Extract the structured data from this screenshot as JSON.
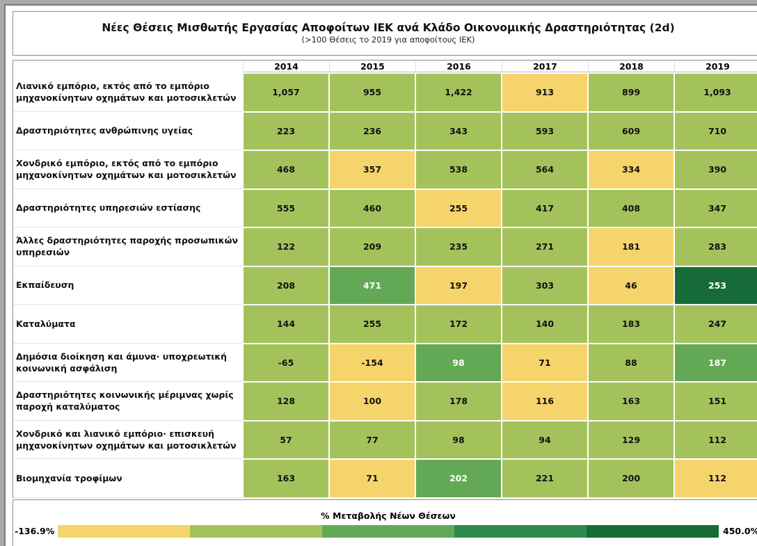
{
  "header": {
    "title": "Νέες Θέσεις Μισθωτής Εργασίας  Αποφοίτων ΙΕΚ ανά Κλάδο Οικονομικής Δραστηριότητας (2d)",
    "subtitle": "(>100 Θέσεις το 2019 για αποφοίτους ΙΕΚ)"
  },
  "legend": {
    "title": "% Μεταβολής Νέων Θέσεων",
    "min": "-136.9%",
    "max": "450.0%",
    "colors": [
      "#f6d46c",
      "#a4c25c",
      "#63a955",
      "#2f8a4d",
      "#166b38"
    ]
  },
  "table": {
    "columns": [
      "2014",
      "2015",
      "2016",
      "2017",
      "2018",
      "2019"
    ],
    "rows": [
      {
        "label": "Λιανικό εμπόριο, εκτός από το εμπόριο μηχανοκίνητων οχημάτων και μοτοσικλετών",
        "cells": [
          {
            "value": "1,057",
            "color": "#a4c25c"
          },
          {
            "value": "955",
            "color": "#a4c25c"
          },
          {
            "value": "1,422",
            "color": "#a4c25c"
          },
          {
            "value": "913",
            "color": "#f6d46c"
          },
          {
            "value": "899",
            "color": "#a4c25c"
          },
          {
            "value": "1,093",
            "color": "#a4c25c"
          }
        ]
      },
      {
        "label": "Δραστηριότητες ανθρώπινης υγείας",
        "cells": [
          {
            "value": "223",
            "color": "#a4c25c"
          },
          {
            "value": "236",
            "color": "#a4c25c"
          },
          {
            "value": "343",
            "color": "#a4c25c"
          },
          {
            "value": "593",
            "color": "#a4c25c"
          },
          {
            "value": "609",
            "color": "#a4c25c"
          },
          {
            "value": "710",
            "color": "#a4c25c"
          }
        ]
      },
      {
        "label": "Χονδρικό εμπόριο, εκτός από το εμπόριο μηχανοκίνητων οχημάτων και μοτοσικλετών",
        "cells": [
          {
            "value": "468",
            "color": "#a4c25c"
          },
          {
            "value": "357",
            "color": "#f6d46c"
          },
          {
            "value": "538",
            "color": "#a4c25c"
          },
          {
            "value": "564",
            "color": "#a4c25c"
          },
          {
            "value": "334",
            "color": "#f6d46c"
          },
          {
            "value": "390",
            "color": "#a4c25c"
          }
        ]
      },
      {
        "label": "Δραστηριότητες υπηρεσιών εστίασης",
        "cells": [
          {
            "value": "555",
            "color": "#a4c25c"
          },
          {
            "value": "460",
            "color": "#a4c25c"
          },
          {
            "value": "255",
            "color": "#f6d46c"
          },
          {
            "value": "417",
            "color": "#a4c25c"
          },
          {
            "value": "408",
            "color": "#a4c25c"
          },
          {
            "value": "347",
            "color": "#a4c25c"
          }
        ]
      },
      {
        "label": "Άλλες δραστηριότητες παροχής προσωπικών υπηρεσιών",
        "cells": [
          {
            "value": "122",
            "color": "#a4c25c"
          },
          {
            "value": "209",
            "color": "#a4c25c"
          },
          {
            "value": "235",
            "color": "#a4c25c"
          },
          {
            "value": "271",
            "color": "#a4c25c"
          },
          {
            "value": "181",
            "color": "#f6d46c"
          },
          {
            "value": "283",
            "color": "#a4c25c"
          }
        ]
      },
      {
        "label": "Εκπαίδευση",
        "cells": [
          {
            "value": "208",
            "color": "#a4c25c"
          },
          {
            "value": "471",
            "color": "#63a955"
          },
          {
            "value": "197",
            "color": "#f6d46c"
          },
          {
            "value": "303",
            "color": "#a4c25c"
          },
          {
            "value": "46",
            "color": "#f6d46c"
          },
          {
            "value": "253",
            "color": "#166b38"
          }
        ]
      },
      {
        "label": "Καταλύματα",
        "cells": [
          {
            "value": "144",
            "color": "#a4c25c"
          },
          {
            "value": "255",
            "color": "#a4c25c"
          },
          {
            "value": "172",
            "color": "#a4c25c"
          },
          {
            "value": "140",
            "color": "#a4c25c"
          },
          {
            "value": "183",
            "color": "#a4c25c"
          },
          {
            "value": "247",
            "color": "#a4c25c"
          }
        ]
      },
      {
        "label": "Δημόσια διοίκηση και άμυνα· υποχρεωτική κοινωνική ασφάλιση",
        "cells": [
          {
            "value": "-65",
            "color": "#a4c25c"
          },
          {
            "value": "-154",
            "color": "#f6d46c"
          },
          {
            "value": "98",
            "color": "#63a955"
          },
          {
            "value": "71",
            "color": "#f6d46c"
          },
          {
            "value": "88",
            "color": "#a4c25c"
          },
          {
            "value": "187",
            "color": "#63a955"
          }
        ]
      },
      {
        "label": "Δραστηριότητες κοινωνικής μέριμνας χωρίς παροχή καταλύματος",
        "cells": [
          {
            "value": "128",
            "color": "#a4c25c"
          },
          {
            "value": "100",
            "color": "#f6d46c"
          },
          {
            "value": "178",
            "color": "#a4c25c"
          },
          {
            "value": "116",
            "color": "#f6d46c"
          },
          {
            "value": "163",
            "color": "#a4c25c"
          },
          {
            "value": "151",
            "color": "#a4c25c"
          }
        ]
      },
      {
        "label": "Χονδρικό και λιανικό εμπόριο· επισκευή μηχανοκίνητων οχημάτων και μοτοσικλετών",
        "cells": [
          {
            "value": "57",
            "color": "#a4c25c"
          },
          {
            "value": "77",
            "color": "#a4c25c"
          },
          {
            "value": "98",
            "color": "#a4c25c"
          },
          {
            "value": "94",
            "color": "#a4c25c"
          },
          {
            "value": "129",
            "color": "#a4c25c"
          },
          {
            "value": "112",
            "color": "#a4c25c"
          }
        ]
      },
      {
        "label": "Βιομηχανία τροφίμων",
        "cells": [
          {
            "value": "163",
            "color": "#a4c25c"
          },
          {
            "value": "71",
            "color": "#f6d46c"
          },
          {
            "value": "202",
            "color": "#63a955"
          },
          {
            "value": "221",
            "color": "#a4c25c"
          },
          {
            "value": "200",
            "color": "#a4c25c"
          },
          {
            "value": "112",
            "color": "#f6d46c"
          }
        ]
      }
    ]
  }
}
